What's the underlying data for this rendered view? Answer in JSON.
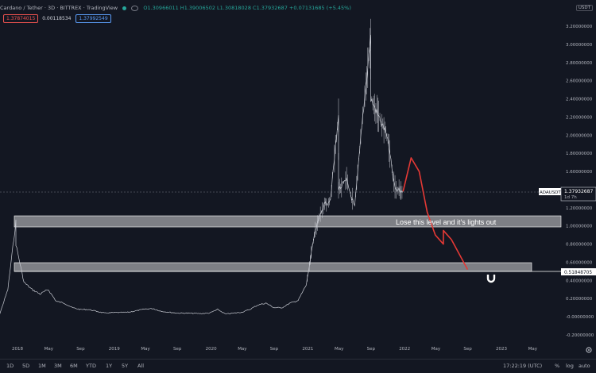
{
  "header": {
    "title": "Cardano / Tether · 3D · BITTREX · TradingView",
    "ohlc": "O1.30966011 H1.39006502 L1.30818028 C1.37932687 +0.07131685 (+5.45%)",
    "sell": "1.37874015",
    "spread": "0.00118534",
    "buy": "1.37992549",
    "currency": "USDT"
  },
  "price_axis": {
    "labels": [
      "3.20000000",
      "3.00000000",
      "2.80000000",
      "2.60000000",
      "2.40000000",
      "2.20000000",
      "2.00000000",
      "1.80000000",
      "1.60000000",
      "1.40000000",
      "1.20000000",
      "1.00000000",
      "0.80000000",
      "0.60000000",
      "0.40000000",
      "0.20000000",
      "-0.00000000",
      "-0.20000000"
    ],
    "symbol_tag": "ADAUSDT",
    "last_price": "1.37932687",
    "countdown": "1d 7h",
    "level_price": "0.51848705"
  },
  "time_axis": [
    "2018",
    "May",
    "Sep",
    "2019",
    "May",
    "Sep",
    "2020",
    "May",
    "Sep",
    "2021",
    "May",
    "Sep",
    "2022",
    "May",
    "Sep",
    "2023",
    "May"
  ],
  "annotation": "Lose this level and it's lights out",
  "bottom": {
    "timeframes": [
      "1D",
      "5D",
      "1M",
      "3M",
      "6M",
      "YTD",
      "1Y",
      "5Y",
      "All"
    ],
    "clock": "17:22:19 (UTC)",
    "right": [
      "%",
      "log",
      "auto"
    ]
  },
  "colors": {
    "bg": "#131722",
    "candle": "#c8cbd3",
    "projection": "#e53935",
    "zone": "#d1d4dc"
  },
  "chart_data": {
    "type": "line",
    "series": [
      {
        "points": [
          [
            "2017-10",
            0.02
          ],
          [
            "2017-11",
            0.03
          ],
          [
            "2017-12",
            0.3
          ],
          [
            "2018-01",
            1.05
          ],
          [
            "2018-01",
            0.8
          ],
          [
            "2018-02",
            0.38
          ],
          [
            "2018-03",
            0.3
          ],
          [
            "2018-04",
            0.25
          ],
          [
            "2018-05",
            0.3
          ],
          [
            "2018-06",
            0.17
          ],
          [
            "2018-07",
            0.15
          ],
          [
            "2018-08",
            0.1
          ],
          [
            "2018-09",
            0.08
          ],
          [
            "2018-10",
            0.08
          ],
          [
            "2018-11",
            0.06
          ],
          [
            "2018-12",
            0.04
          ],
          [
            "2019-01",
            0.045
          ],
          [
            "2019-03",
            0.05
          ],
          [
            "2019-05",
            0.085
          ],
          [
            "2019-06",
            0.09
          ],
          [
            "2019-07",
            0.06
          ],
          [
            "2019-08",
            0.05
          ],
          [
            "2019-09",
            0.04
          ],
          [
            "2019-10",
            0.04
          ],
          [
            "2019-12",
            0.035
          ],
          [
            "2020-01",
            0.04
          ],
          [
            "2020-02",
            0.08
          ],
          [
            "2020-03",
            0.03
          ],
          [
            "2020-05",
            0.05
          ],
          [
            "2020-06",
            0.08
          ],
          [
            "2020-07",
            0.13
          ],
          [
            "2020-08",
            0.15
          ],
          [
            "2020-09",
            0.1
          ],
          [
            "2020-10",
            0.1
          ],
          [
            "2020-11",
            0.15
          ],
          [
            "2020-12",
            0.18
          ],
          [
            "2021-01",
            0.35
          ],
          [
            "2021-02",
            0.9
          ],
          [
            "2021-03",
            1.2
          ],
          [
            "2021-04",
            1.3
          ],
          [
            "2021-05",
            2.2
          ],
          [
            "2021-05",
            1.4
          ],
          [
            "2021-06",
            1.5
          ],
          [
            "2021-07",
            1.2
          ],
          [
            "2021-08",
            2.2
          ],
          [
            "2021-09",
            3.1
          ],
          [
            "2021-09",
            2.4
          ],
          [
            "2021-10",
            2.2
          ],
          [
            "2021-11",
            2.0
          ],
          [
            "2021-12",
            1.4
          ],
          [
            "2022-01",
            1.38
          ]
        ]
      }
    ],
    "projection": [
      [
        "2022-01",
        1.38
      ],
      [
        "2022-02",
        1.75
      ],
      [
        "2022-03",
        1.6
      ],
      [
        "2022-04",
        1.15
      ],
      [
        "2022-05",
        0.9
      ],
      [
        "2022-06",
        0.8
      ],
      [
        "2022-06",
        0.95
      ],
      [
        "2022-07",
        0.85
      ],
      [
        "2022-09",
        0.52
      ]
    ],
    "zones": [
      {
        "low": 0.96,
        "high": 1.06
      },
      {
        "low": 0.51,
        "high": 0.6
      }
    ],
    "ylim": [
      -0.2,
      3.25
    ]
  }
}
